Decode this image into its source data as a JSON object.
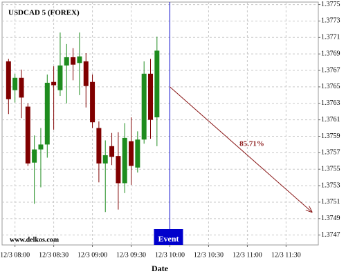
{
  "chart_data": {
    "type": "candlestick",
    "title": "USDCAD 5 (FOREX)",
    "watermark": "www.delkos.com",
    "x_label": "Date",
    "x": [
      "12/3 07:55",
      "12/3 08:00",
      "12/3 08:05",
      "12/3 08:10",
      "12/3 08:15",
      "12/3 08:20",
      "12/3 08:25",
      "12/3 08:30",
      "12/3 08:35",
      "12/3 08:40",
      "12/3 08:45",
      "12/3 08:50",
      "12/3 08:55",
      "12/3 09:00",
      "12/3 09:05",
      "12/3 09:10",
      "12/3 09:15",
      "12/3 09:20",
      "12/3 09:25",
      "12/3 09:30",
      "12/3 09:35",
      "12/3 09:40",
      "12/3 09:45",
      "12/3 09:50"
    ],
    "open": [
      1.37681,
      1.37646,
      1.37661,
      1.37626,
      1.37558,
      1.37574,
      1.3758,
      1.37656,
      1.37646,
      1.37676,
      1.37686,
      1.37679,
      1.37681,
      1.37656,
      1.376,
      1.37557,
      1.37578,
      1.37566,
      1.37533,
      1.37584,
      1.37552,
      1.37586,
      1.37666,
      1.37613
    ],
    "high": [
      1.37684,
      1.37666,
      1.37671,
      1.3763,
      1.37591,
      1.376,
      1.37665,
      1.37675,
      1.37716,
      1.37702,
      1.37697,
      1.37716,
      1.37691,
      1.37665,
      1.37608,
      1.37585,
      1.37594,
      1.37595,
      1.37606,
      1.37613,
      1.37596,
      1.37681,
      1.37684,
      1.37711
    ],
    "low": [
      1.37617,
      1.37631,
      1.37612,
      1.37554,
      1.37508,
      1.37528,
      1.37564,
      1.37598,
      1.37639,
      1.3763,
      1.37658,
      1.3764,
      1.37625,
      1.376,
      1.37534,
      1.37498,
      1.37555,
      1.37501,
      1.37521,
      1.37531,
      1.37546,
      1.37581,
      1.37587,
      1.37578
    ],
    "close": [
      1.37635,
      1.37661,
      1.37637,
      1.37557,
      1.37574,
      1.3758,
      1.37655,
      1.37652,
      1.37676,
      1.37686,
      1.37677,
      1.37687,
      1.37651,
      1.37607,
      1.37557,
      1.37567,
      1.37565,
      1.37533,
      1.37588,
      1.37554,
      1.37586,
      1.37666,
      1.3761,
      1.37694
    ],
    "up_color": "#1e8c1e",
    "down_color": "#800000",
    "xlim": [
      "12/3 07:50",
      "12/3 11:55"
    ],
    "xticks": [
      "12/3 08:00",
      "12/3 08:30",
      "12/3 09:00",
      "12/3 09:30",
      "12/3 10:00",
      "12/3 10:30",
      "12/3 11:00",
      "12/3 11:30"
    ],
    "ylim": [
      1.37458,
      1.37753
    ],
    "yticks": [
      1.3775,
      1.3773,
      1.3771,
      1.3769,
      1.3767,
      1.3765,
      1.3763,
      1.3761,
      1.3759,
      1.3757,
      1.3755,
      1.3753,
      1.3751,
      1.3749,
      1.3747
    ],
    "grid": true,
    "event": {
      "x": "12/3 10:00",
      "label": "Event",
      "color": "#0000cc"
    },
    "forecast": {
      "x": [
        "12/3 10:00",
        "12/3 11:50"
      ],
      "values": [
        1.3765,
        1.37498
      ],
      "label": "85.71%",
      "color": "#8b1a1a"
    }
  }
}
